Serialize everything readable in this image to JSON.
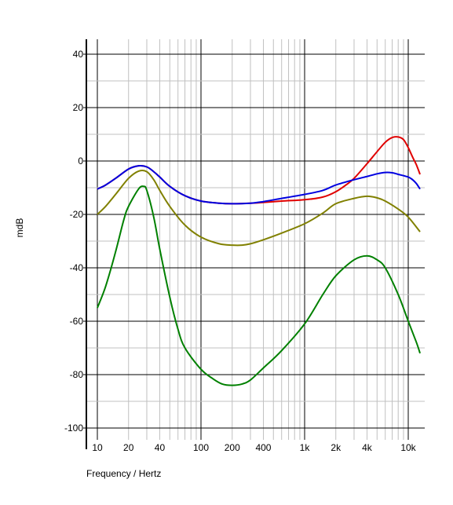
{
  "chart_data": {
    "type": "line",
    "title": "",
    "xlabel": "Frequency / Hertz",
    "ylabel": "mdB",
    "x_scale": "log",
    "xlim": [
      10,
      13000
    ],
    "ylim": [
      -100,
      45
    ],
    "grid": true,
    "legend": "none",
    "x_ticks": [
      {
        "value": 10,
        "label": "10"
      },
      {
        "value": 20,
        "label": "20"
      },
      {
        "value": 40,
        "label": "40"
      },
      {
        "value": 100,
        "label": "100"
      },
      {
        "value": 200,
        "label": "200"
      },
      {
        "value": 400,
        "label": "400"
      },
      {
        "value": 1000,
        "label": "1k"
      },
      {
        "value": 2000,
        "label": "2k"
      },
      {
        "value": 4000,
        "label": "4k"
      },
      {
        "value": 10000,
        "label": "10k"
      }
    ],
    "y_ticks": [
      {
        "value": 40,
        "label": "40"
      },
      {
        "value": 20,
        "label": "20"
      },
      {
        "value": 0,
        "label": "0"
      },
      {
        "value": -20,
        "label": "-20"
      },
      {
        "value": -40,
        "label": "-40"
      },
      {
        "value": -60,
        "label": "-60"
      },
      {
        "value": -80,
        "label": "-80"
      },
      {
        "value": -100,
        "label": "-100"
      }
    ],
    "series": [
      {
        "color": "#e00000",
        "x": [
          10,
          12,
          15,
          20,
          25,
          30,
          35,
          40,
          50,
          70,
          100,
          150,
          200,
          300,
          400,
          600,
          1000,
          1500,
          2000,
          2500,
          3000,
          4000,
          5000,
          6000,
          7000,
          8000,
          9000,
          10000,
          11000,
          12000,
          13000
        ],
        "y": [
          -10.5,
          -9,
          -6.5,
          -3,
          -1.8,
          -2.2,
          -4,
          -6,
          -9.5,
          -13,
          -15,
          -15.8,
          -16,
          -15.8,
          -15.5,
          -15,
          -14.5,
          -13.5,
          -11.5,
          -9,
          -6.5,
          -1,
          3.5,
          7,
          8.8,
          9,
          8,
          5,
          1.5,
          -1.5,
          -5
        ]
      },
      {
        "color": "#0000e0",
        "x": [
          10,
          12,
          15,
          20,
          25,
          30,
          35,
          40,
          50,
          70,
          100,
          150,
          200,
          300,
          400,
          600,
          1000,
          1500,
          2000,
          3000,
          4000,
          5000,
          6000,
          7000,
          8000,
          10000,
          11000,
          12000,
          13000
        ],
        "y": [
          -10.5,
          -9,
          -6.5,
          -3,
          -1.8,
          -2.2,
          -4,
          -6,
          -9.5,
          -13,
          -15,
          -15.8,
          -16,
          -15.8,
          -15.2,
          -14,
          -12.5,
          -11,
          -9,
          -7,
          -5.8,
          -4.8,
          -4.3,
          -4.4,
          -5,
          -6,
          -7,
          -8.5,
          -10.5
        ]
      },
      {
        "color": "#808000",
        "x": [
          10,
          12,
          15,
          20,
          25,
          30,
          35,
          40,
          50,
          70,
          100,
          150,
          200,
          250,
          300,
          400,
          600,
          1000,
          1500,
          2000,
          3000,
          4000,
          5000,
          6000,
          8000,
          10000,
          13000
        ],
        "y": [
          -20,
          -17,
          -12.5,
          -6.5,
          -3.8,
          -4,
          -7,
          -11,
          -17,
          -24,
          -28.5,
          -31,
          -31.5,
          -31.5,
          -31,
          -29.5,
          -27,
          -23.5,
          -19.5,
          -16,
          -14,
          -13.2,
          -13.8,
          -15,
          -18,
          -21,
          -26.5
        ]
      },
      {
        "color": "#008000",
        "x": [
          10,
          12,
          15,
          18,
          20,
          25,
          28,
          30,
          35,
          40,
          50,
          60,
          70,
          100,
          130,
          160,
          200,
          250,
          300,
          400,
          600,
          1000,
          1500,
          2000,
          3000,
          4000,
          5000,
          6000,
          8000,
          10000,
          12000,
          13000
        ],
        "y": [
          -55,
          -47,
          -34,
          -22,
          -17,
          -10.5,
          -9.5,
          -11,
          -21,
          -33,
          -51,
          -63,
          -70,
          -78,
          -81.5,
          -83.5,
          -84,
          -83.5,
          -82,
          -77.5,
          -71,
          -61,
          -50,
          -43,
          -37,
          -35.5,
          -37,
          -40,
          -50,
          -60,
          -68,
          -72
        ]
      }
    ]
  }
}
